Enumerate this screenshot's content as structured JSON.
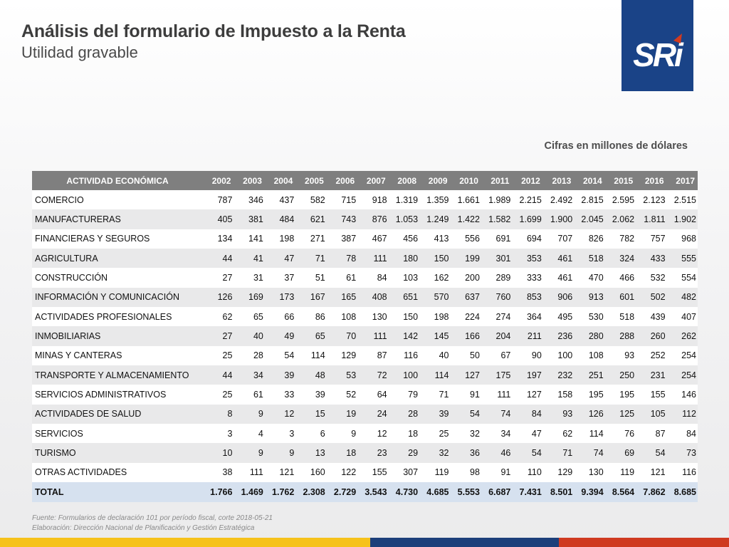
{
  "header": {
    "title": "Análisis del formulario de Impuesto a la Renta",
    "subtitle": "Utilidad gravable"
  },
  "logo": {
    "text": "SRi",
    "bg_color": "#1a4387"
  },
  "units_note": "Cifras en millones de dólares",
  "table": {
    "headers": [
      "ACTIVIDAD ECONÓMICA",
      "2002",
      "2003",
      "2004",
      "2005",
      "2006",
      "2007",
      "2008",
      "2009",
      "2010",
      "2011",
      "2012",
      "2013",
      "2014",
      "2015",
      "2016",
      "2017"
    ],
    "rows": [
      [
        "COMERCIO",
        "787",
        "346",
        "437",
        "582",
        "715",
        "918",
        "1.319",
        "1.359",
        "1.661",
        "1.989",
        "2.215",
        "2.492",
        "2.815",
        "2.595",
        "2.123",
        "2.515"
      ],
      [
        "MANUFACTURERAS",
        "405",
        "381",
        "484",
        "621",
        "743",
        "876",
        "1.053",
        "1.249",
        "1.422",
        "1.582",
        "1.699",
        "1.900",
        "2.045",
        "2.062",
        "1.811",
        "1.902"
      ],
      [
        "FINANCIERAS Y SEGUROS",
        "134",
        "141",
        "198",
        "271",
        "387",
        "467",
        "456",
        "413",
        "556",
        "691",
        "694",
        "707",
        "826",
        "782",
        "757",
        "968"
      ],
      [
        "AGRICULTURA",
        "44",
        "41",
        "47",
        "71",
        "78",
        "111",
        "180",
        "150",
        "199",
        "301",
        "353",
        "461",
        "518",
        "324",
        "433",
        "555"
      ],
      [
        "CONSTRUCCIÓN",
        "27",
        "31",
        "37",
        "51",
        "61",
        "84",
        "103",
        "162",
        "200",
        "289",
        "333",
        "461",
        "470",
        "466",
        "532",
        "554"
      ],
      [
        "INFORMACIÓN Y COMUNICACIÓN",
        "126",
        "169",
        "173",
        "167",
        "165",
        "408",
        "651",
        "570",
        "637",
        "760",
        "853",
        "906",
        "913",
        "601",
        "502",
        "482"
      ],
      [
        "ACTIVIDADES PROFESIONALES",
        "62",
        "65",
        "66",
        "86",
        "108",
        "130",
        "150",
        "198",
        "224",
        "274",
        "364",
        "495",
        "530",
        "518",
        "439",
        "407"
      ],
      [
        "INMOBILIARIAS",
        "27",
        "40",
        "49",
        "65",
        "70",
        "111",
        "142",
        "145",
        "166",
        "204",
        "211",
        "236",
        "280",
        "288",
        "260",
        "262"
      ],
      [
        "MINAS Y CANTERAS",
        "25",
        "28",
        "54",
        "114",
        "129",
        "87",
        "116",
        "40",
        "50",
        "67",
        "90",
        "100",
        "108",
        "93",
        "252",
        "254"
      ],
      [
        "TRANSPORTE Y ALMACENAMIENTO",
        "44",
        "34",
        "39",
        "48",
        "53",
        "72",
        "100",
        "114",
        "127",
        "175",
        "197",
        "232",
        "251",
        "250",
        "231",
        "254"
      ],
      [
        "SERVICIOS ADMINISTRATIVOS",
        "25",
        "61",
        "33",
        "39",
        "52",
        "64",
        "79",
        "71",
        "91",
        "111",
        "127",
        "158",
        "195",
        "195",
        "155",
        "146"
      ],
      [
        "ACTIVIDADES DE SALUD",
        "8",
        "9",
        "12",
        "15",
        "19",
        "24",
        "28",
        "39",
        "54",
        "74",
        "84",
        "93",
        "126",
        "125",
        "105",
        "112"
      ],
      [
        "SERVICIOS",
        "3",
        "4",
        "3",
        "6",
        "9",
        "12",
        "18",
        "25",
        "32",
        "34",
        "47",
        "62",
        "114",
        "76",
        "87",
        "84"
      ],
      [
        "TURISMO",
        "10",
        "9",
        "9",
        "13",
        "18",
        "23",
        "29",
        "32",
        "36",
        "46",
        "54",
        "71",
        "74",
        "69",
        "54",
        "73"
      ],
      [
        "OTRAS ACTIVIDADES",
        "38",
        "111",
        "121",
        "160",
        "122",
        "155",
        "307",
        "119",
        "98",
        "91",
        "110",
        "129",
        "130",
        "119",
        "121",
        "116"
      ]
    ],
    "total": [
      "TOTAL",
      "1.766",
      "1.469",
      "1.762",
      "2.308",
      "2.729",
      "3.543",
      "4.730",
      "4.685",
      "5.553",
      "6.687",
      "7.431",
      "8.501",
      "9.394",
      "8.564",
      "7.862",
      "8.685"
    ]
  },
  "footer": {
    "source": "Fuente: Formularios de declaración 101 por período fiscal, corte 2018-05-21",
    "elaboration": "Elaboración: Dirección Nacional de Planificación y Gestión Estratégica",
    "colors": [
      "#f6c21b",
      "#1c3f7a",
      "#cf3a20"
    ]
  }
}
